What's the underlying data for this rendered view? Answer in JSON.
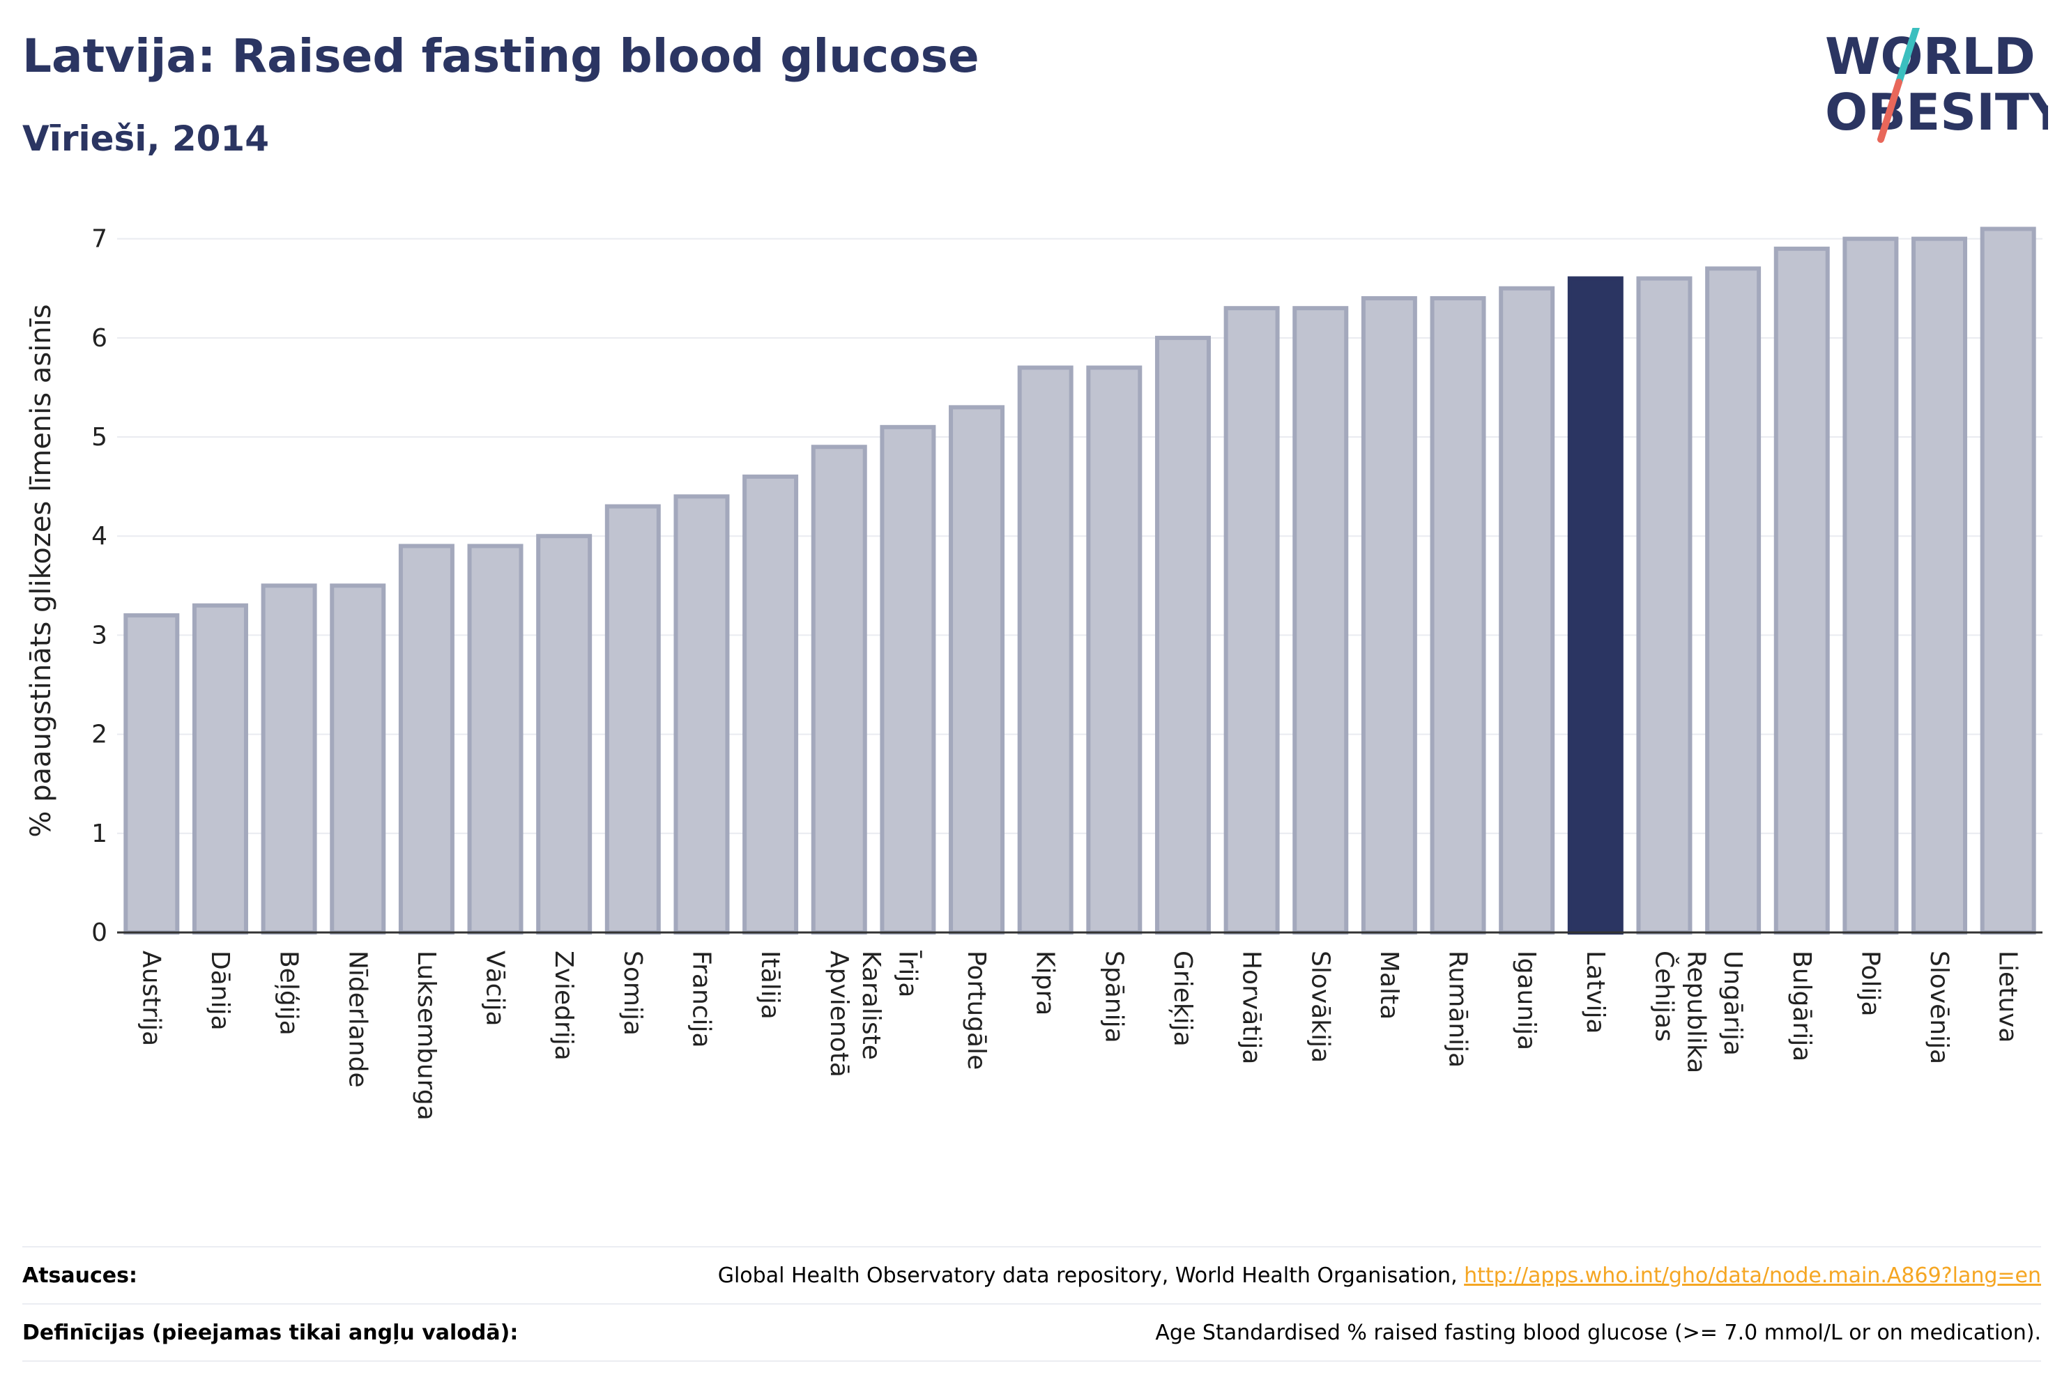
{
  "header": {
    "title": "Latvija: Raised fasting blood glucose",
    "subtitle": "Vīrieši, 2014"
  },
  "logo": {
    "line1": "WORLD",
    "line2": "OBESITY",
    "accent_colors": [
      "#3bbfbf",
      "#e8675a"
    ]
  },
  "chart_data": {
    "type": "bar",
    "ylabel": "% paaugstināts glikozes līmenis asinīs",
    "ylim": [
      0,
      7.3
    ],
    "yticks": [
      0,
      1,
      2,
      3,
      4,
      5,
      6,
      7
    ],
    "grid": true,
    "highlight": "Latvija",
    "colors": {
      "bar": "#c0c3d0",
      "bar_border": "#a3a8bc",
      "highlight": "#2b3562"
    },
    "categories": [
      "Austrija",
      "Dānija",
      "Beļģija",
      "Nīderlande",
      "Luksemburga",
      "Vācija",
      "Zviedrija",
      "Somija",
      "Francija",
      "Itālija",
      "Apvienotā Karaliste",
      "Īrija",
      "Portugāle",
      "Kipra",
      "Spānija",
      "Grieķija",
      "Horvātija",
      "Slovākija",
      "Malta",
      "Rumānija",
      "Igaunija",
      "Latvija",
      "Čehijas Republika",
      "Ungārija",
      "Bulgārija",
      "Polija",
      "Slovēnija",
      "Lietuva"
    ],
    "values": [
      3.2,
      3.3,
      3.5,
      3.5,
      3.9,
      3.9,
      4.0,
      4.3,
      4.4,
      4.6,
      4.9,
      5.1,
      5.3,
      5.7,
      5.7,
      6.0,
      6.3,
      6.3,
      6.4,
      6.4,
      6.5,
      6.6,
      6.6,
      6.7,
      6.9,
      7.0,
      7.0,
      7.1
    ]
  },
  "footer": {
    "sources_label": "Atsauces:",
    "sources_text": "Global Health Observatory data repository, World Health Organisation, ",
    "sources_link": "http://apps.who.int/gho/data/node.main.A869?lang=en",
    "definitions_label": "Definīcijas (pieejamas tikai angļu valodā):",
    "definitions_text": "Age Standardised % raised fasting blood glucose (>= 7.0 mmol/L or on medication)."
  }
}
